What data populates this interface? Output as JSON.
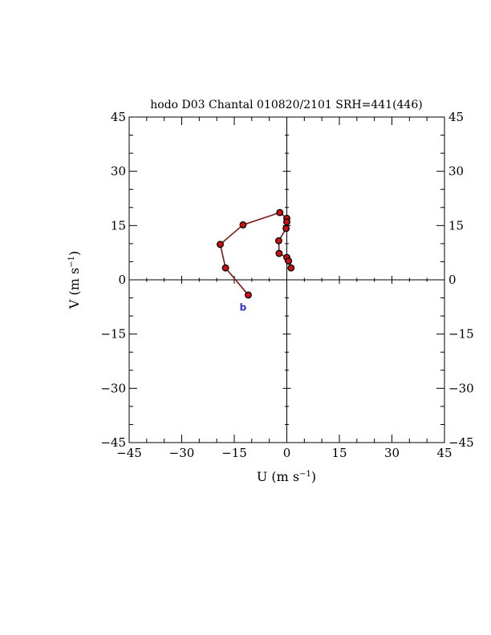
{
  "chart_data": {
    "type": "line",
    "title": "hodo D03 Chantal 010820/2101 SRH=441(446)",
    "xlabel": "U (m s",
    "ylabel": "V (m s",
    "label_exponent": "−1",
    "label_close": ")",
    "xlim": [
      -45,
      45
    ],
    "ylim": [
      -45,
      45
    ],
    "ticks": [
      -45,
      -30,
      -15,
      0,
      15,
      30,
      45
    ],
    "tick_labels": [
      "−45",
      "−30",
      "−15",
      "0",
      "15",
      "30",
      "45"
    ],
    "points": [
      {
        "x": -11,
        "y": -4.2
      },
      {
        "x": -17.5,
        "y": 3.3
      },
      {
        "x": -19,
        "y": 9.8
      },
      {
        "x": -12.5,
        "y": 15.2
      },
      {
        "x": -2,
        "y": 18.6
      },
      {
        "x": 0,
        "y": 17
      },
      {
        "x": 0,
        "y": 16
      },
      {
        "x": -0.2,
        "y": 14.2
      },
      {
        "x": -2.3,
        "y": 10.8
      },
      {
        "x": -2.2,
        "y": 7.3
      },
      {
        "x": 0,
        "y": 6.2
      },
      {
        "x": 0.5,
        "y": 5.2
      },
      {
        "x": 1.2,
        "y": 3.3
      }
    ],
    "line_color": "#7a1a12",
    "marker_color": "#cc1111",
    "annotation": {
      "text": "b",
      "x": -12.5,
      "y": -6.5,
      "color": "#3333cc"
    }
  }
}
